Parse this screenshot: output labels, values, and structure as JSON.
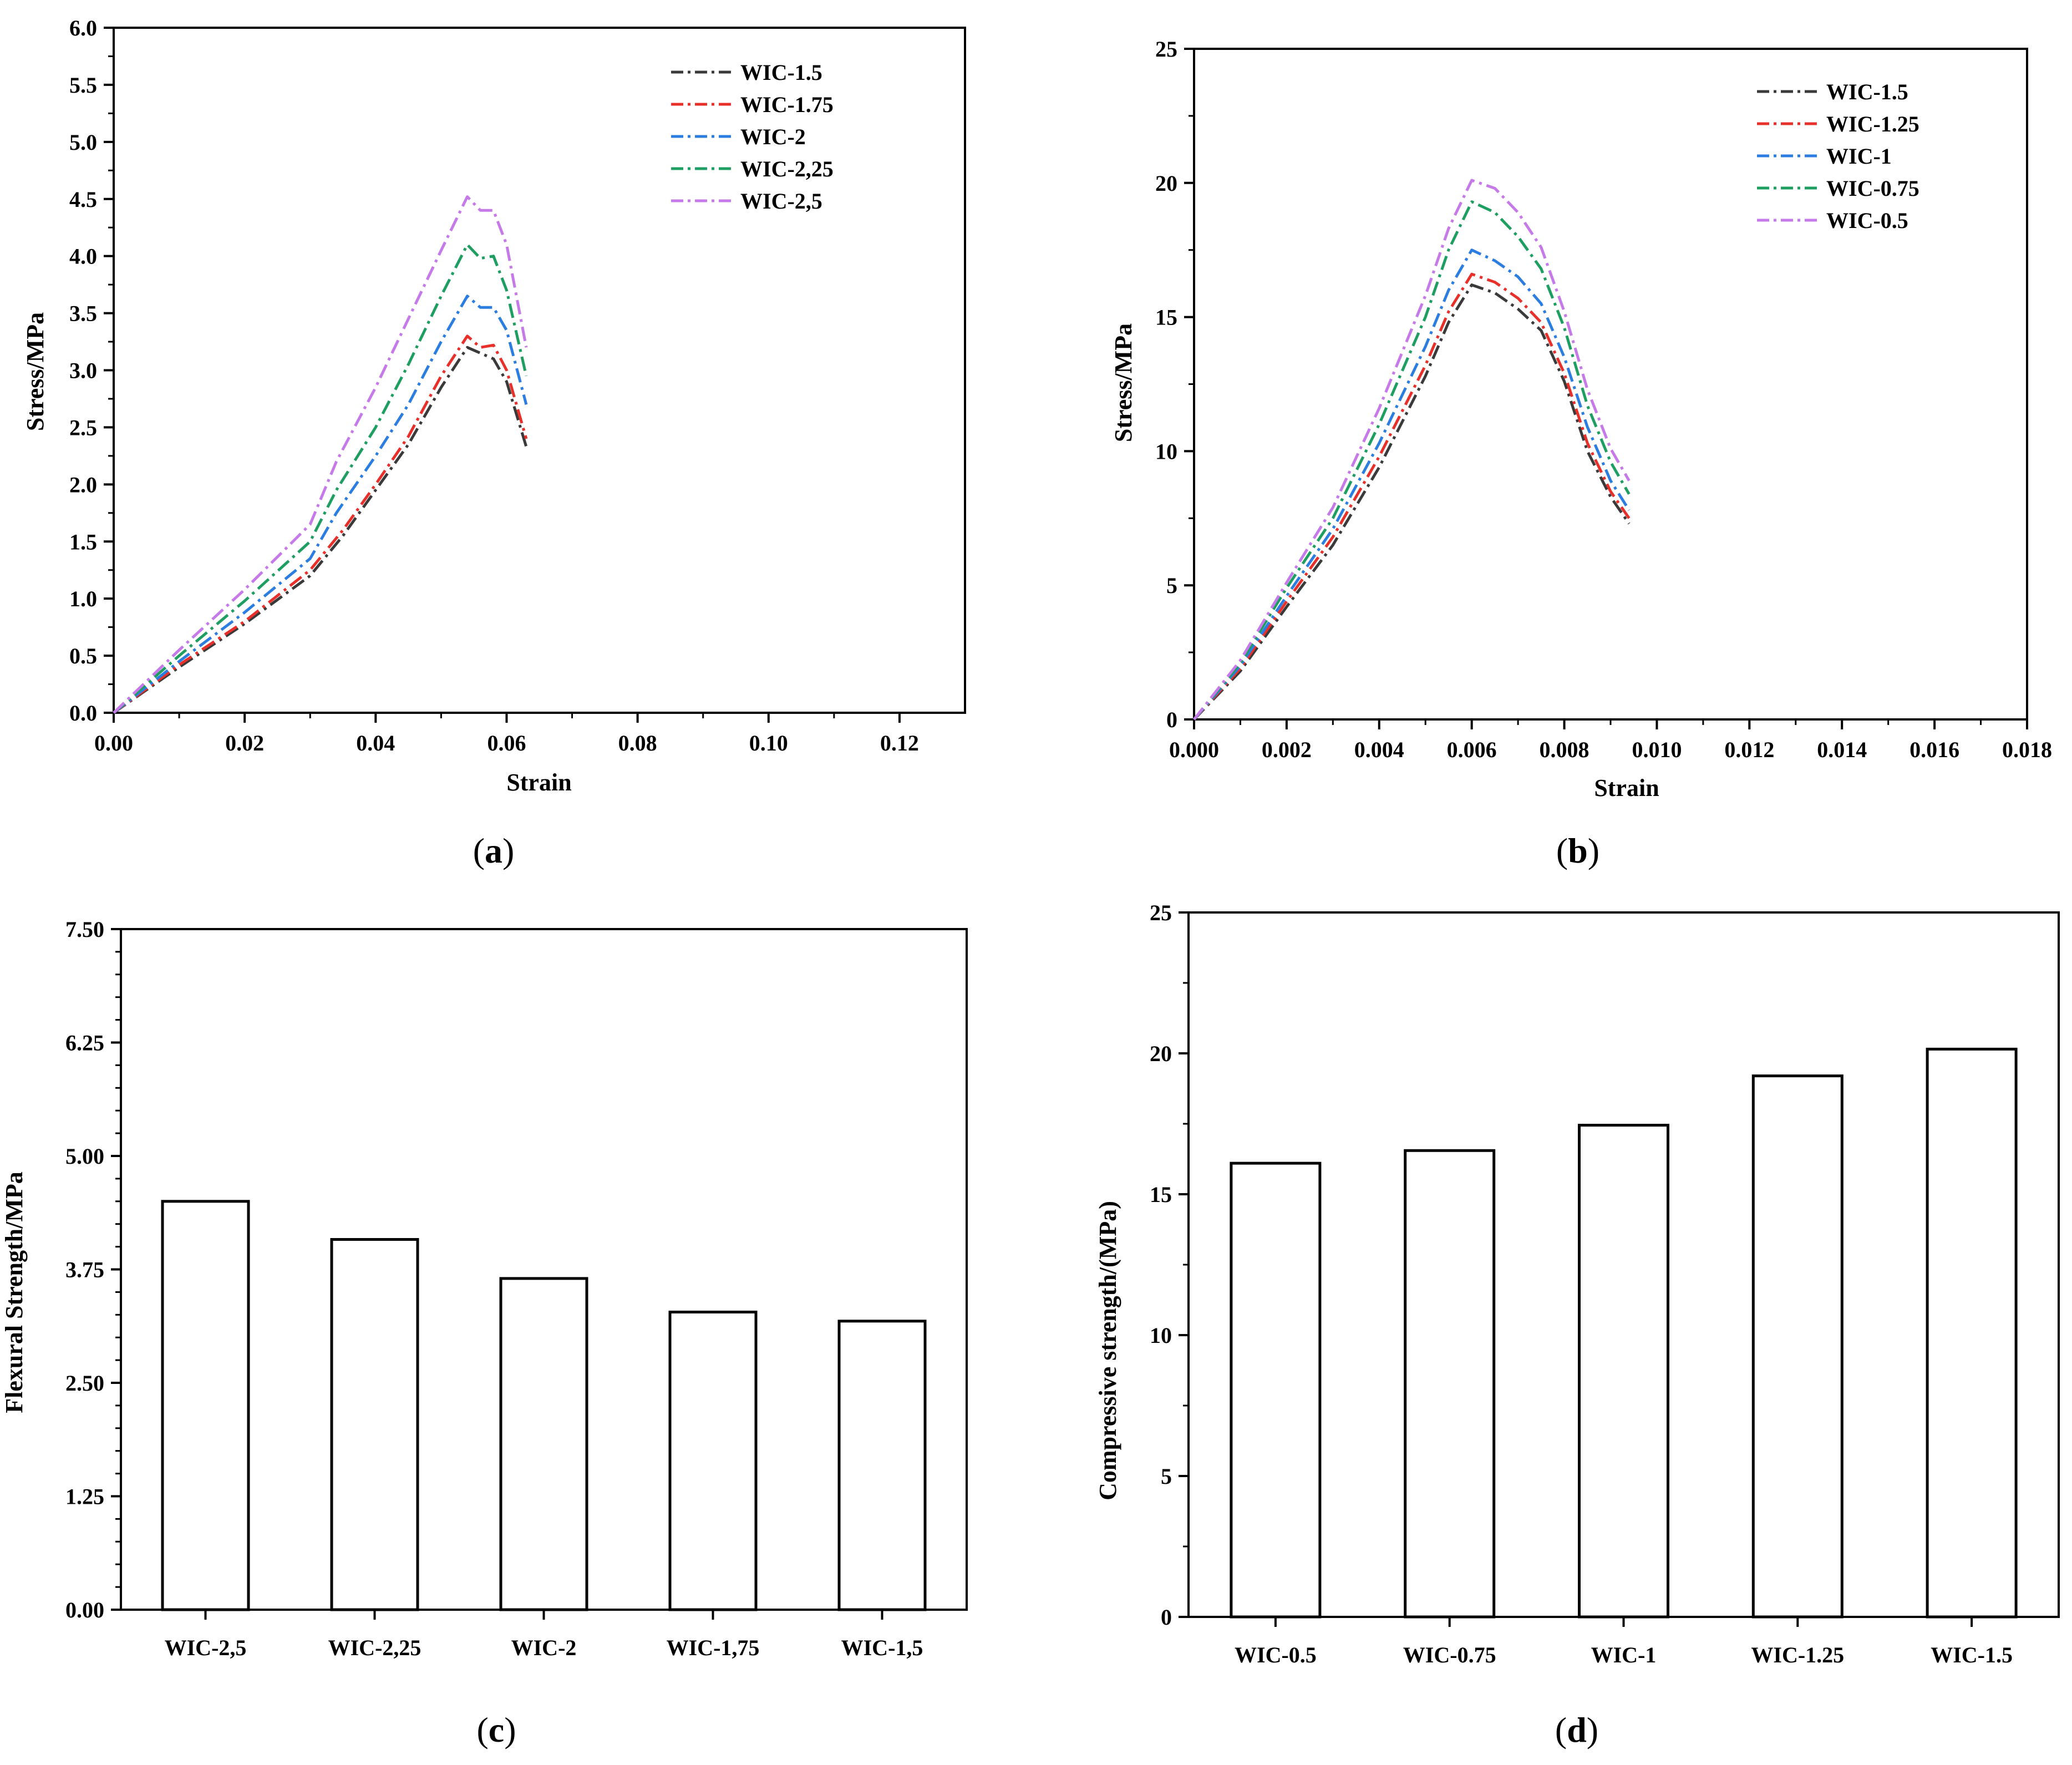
{
  "chart_data": [
    {
      "id": "a",
      "type": "line",
      "caption": "a",
      "xlabel": "Strain",
      "ylabel": "Stress/MPa",
      "xlim": [
        0,
        0.13
      ],
      "ylim": [
        0,
        6.0
      ],
      "xticks": [
        0,
        0.02,
        0.04,
        0.06,
        0.08,
        0.1,
        0.12
      ],
      "xtick_labels": [
        "0.00",
        "0.02",
        "0.04",
        "0.06",
        "0.08",
        "0.10",
        "0.12"
      ],
      "yticks": [
        0,
        0.5,
        1.0,
        1.5,
        2.0,
        2.5,
        3.0,
        3.5,
        4.0,
        4.5,
        5.0,
        5.5,
        6.0
      ],
      "ytick_labels": [
        "0.0",
        "0.5",
        "1.0",
        "1.5",
        "2.0",
        "2.5",
        "3.0",
        "3.5",
        "4.0",
        "4.5",
        "5.0",
        "5.5",
        "6.0"
      ],
      "legend_position": "top-right",
      "series": [
        {
          "name": "WIC-1.5",
          "color": "#3a3a3a",
          "x": [
            0,
            0.01,
            0.02,
            0.03,
            0.035,
            0.04,
            0.045,
            0.05,
            0.054,
            0.056,
            0.058,
            0.06,
            0.063
          ],
          "y": [
            0,
            0.4,
            0.78,
            1.2,
            1.55,
            1.95,
            2.35,
            2.85,
            3.2,
            3.15,
            3.1,
            2.9,
            2.33
          ]
        },
        {
          "name": "WIC-1.75",
          "color": "#e8302b",
          "x": [
            0,
            0.01,
            0.02,
            0.03,
            0.035,
            0.04,
            0.045,
            0.05,
            0.054,
            0.056,
            0.058,
            0.06,
            0.063
          ],
          "y": [
            0,
            0.42,
            0.8,
            1.25,
            1.6,
            2.0,
            2.42,
            2.95,
            3.3,
            3.2,
            3.22,
            3.0,
            2.4
          ]
        },
        {
          "name": "WIC-2",
          "color": "#2b7de0",
          "x": [
            0,
            0.01,
            0.02,
            0.03,
            0.034,
            0.04,
            0.045,
            0.05,
            0.054,
            0.056,
            0.058,
            0.06,
            0.063
          ],
          "y": [
            0,
            0.45,
            0.88,
            1.35,
            1.75,
            2.25,
            2.7,
            3.25,
            3.65,
            3.55,
            3.55,
            3.35,
            2.7
          ]
        },
        {
          "name": "WIC-2,25",
          "color": "#1e9e60",
          "x": [
            0,
            0.01,
            0.02,
            0.03,
            0.034,
            0.04,
            0.045,
            0.05,
            0.054,
            0.056,
            0.058,
            0.06,
            0.063
          ],
          "y": [
            0,
            0.5,
            0.98,
            1.5,
            1.95,
            2.5,
            3.05,
            3.65,
            4.1,
            3.98,
            4.0,
            3.7,
            2.95
          ]
        },
        {
          "name": "WIC-2,5",
          "color": "#c679e8",
          "x": [
            0,
            0.01,
            0.02,
            0.03,
            0.034,
            0.04,
            0.045,
            0.05,
            0.054,
            0.056,
            0.058,
            0.06,
            0.063
          ],
          "y": [
            0,
            0.55,
            1.08,
            1.65,
            2.2,
            2.85,
            3.45,
            4.05,
            4.52,
            4.4,
            4.4,
            4.1,
            3.2
          ]
        }
      ]
    },
    {
      "id": "b",
      "type": "line",
      "caption": "b",
      "xlabel": "Strain",
      "ylabel": "Stress/MPa",
      "xlim": [
        0,
        0.018
      ],
      "ylim": [
        0,
        25
      ],
      "xticks": [
        0,
        0.002,
        0.004,
        0.006,
        0.008,
        0.01,
        0.012,
        0.014,
        0.016,
        0.018
      ],
      "xtick_labels": [
        "0.000",
        "0.002",
        "0.004",
        "0.006",
        "0.008",
        "0.010",
        "0.012",
        "0.014",
        "0.016",
        "0.018"
      ],
      "yticks": [
        0,
        5,
        10,
        15,
        20,
        25
      ],
      "ytick_labels": [
        "0",
        "5",
        "10",
        "15",
        "20",
        "25"
      ],
      "legend_position": "top-right",
      "series": [
        {
          "name": "WIC-1.5",
          "color": "#3a3a3a",
          "x": [
            0,
            0.001,
            0.002,
            0.003,
            0.004,
            0.005,
            0.0055,
            0.006,
            0.0065,
            0.007,
            0.0075,
            0.008,
            0.0085,
            0.009,
            0.0094
          ],
          "y": [
            0,
            1.8,
            4.2,
            6.5,
            9.4,
            12.8,
            14.8,
            16.2,
            15.9,
            15.3,
            14.5,
            12.6,
            10.0,
            8.3,
            7.3
          ]
        },
        {
          "name": "WIC-1.25",
          "color": "#e8302b",
          "x": [
            0,
            0.001,
            0.002,
            0.003,
            0.004,
            0.005,
            0.0055,
            0.006,
            0.0065,
            0.007,
            0.0075,
            0.008,
            0.0085,
            0.009,
            0.0094
          ],
          "y": [
            0,
            1.9,
            4.4,
            6.8,
            9.8,
            13.2,
            15.2,
            16.6,
            16.3,
            15.7,
            14.8,
            12.9,
            10.3,
            8.5,
            7.5
          ]
        },
        {
          "name": "WIC-1",
          "color": "#2b7de0",
          "x": [
            0,
            0.001,
            0.002,
            0.003,
            0.004,
            0.005,
            0.0055,
            0.006,
            0.0065,
            0.007,
            0.0075,
            0.008,
            0.0085,
            0.009,
            0.0094
          ],
          "y": [
            0,
            2.0,
            4.6,
            7.1,
            10.3,
            13.9,
            16.0,
            17.5,
            17.1,
            16.5,
            15.5,
            13.5,
            10.9,
            8.9,
            7.8
          ]
        },
        {
          "name": "WIC-0.75",
          "color": "#1e9e60",
          "x": [
            0,
            0.001,
            0.002,
            0.003,
            0.004,
            0.005,
            0.0055,
            0.006,
            0.0065,
            0.007,
            0.0075,
            0.008,
            0.0085,
            0.009,
            0.0094
          ],
          "y": [
            0,
            2.1,
            4.9,
            7.5,
            11.0,
            15.0,
            17.5,
            19.3,
            18.9,
            18.0,
            16.8,
            14.6,
            11.7,
            9.6,
            8.4
          ]
        },
        {
          "name": "WIC-0.5",
          "color": "#c679e8",
          "x": [
            0,
            0.001,
            0.002,
            0.003,
            0.004,
            0.005,
            0.0055,
            0.006,
            0.0065,
            0.007,
            0.0075,
            0.008,
            0.0085,
            0.009,
            0.0094
          ],
          "y": [
            0,
            2.2,
            5.1,
            7.9,
            11.6,
            15.8,
            18.3,
            20.1,
            19.8,
            18.9,
            17.6,
            15.2,
            12.3,
            10.1,
            8.9
          ]
        }
      ]
    },
    {
      "id": "c",
      "type": "bar",
      "caption": "c",
      "xlabel": "",
      "ylabel": "Flexural Strength/MPa",
      "ylim": [
        0,
        7.5
      ],
      "yticks": [
        0,
        1.25,
        2.5,
        3.75,
        5.0,
        6.25,
        7.5
      ],
      "ytick_labels": [
        "0.00",
        "1.25",
        "2.50",
        "3.75",
        "5.00",
        "6.25",
        "7.50"
      ],
      "categories": [
        "WIC-2,5",
        "WIC-2,25",
        "WIC-2",
        "WIC-1,75",
        "WIC-1,5"
      ],
      "values": [
        4.5,
        4.08,
        3.65,
        3.28,
        3.18
      ]
    },
    {
      "id": "d",
      "type": "bar",
      "caption": "d",
      "xlabel": "",
      "ylabel": "Compressive strength/(MPa)",
      "ylim": [
        0,
        25
      ],
      "yticks": [
        0,
        5,
        10,
        15,
        20,
        25
      ],
      "ytick_labels": [
        "0",
        "5",
        "10",
        "15",
        "20",
        "25"
      ],
      "categories": [
        "WIC-0.5",
        "WIC-0.75",
        "WIC-1",
        "WIC-1.25",
        "WIC-1.5"
      ],
      "values": [
        16.1,
        16.55,
        17.45,
        19.2,
        20.15
      ]
    }
  ]
}
